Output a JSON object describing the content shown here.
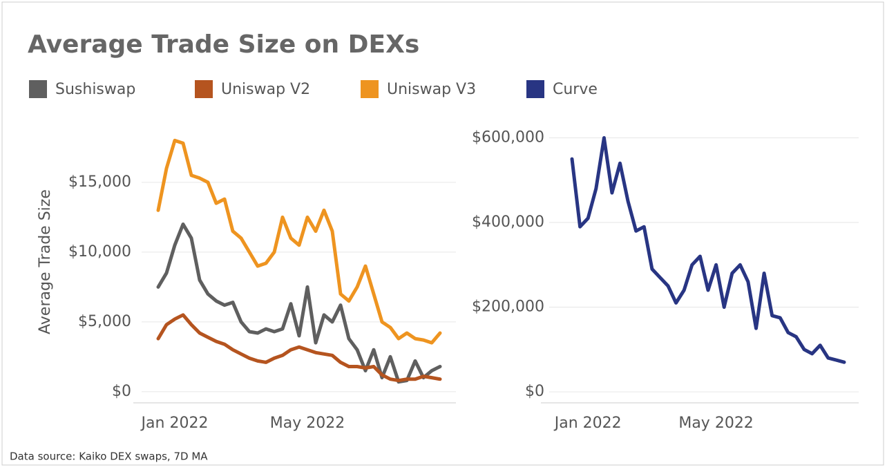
{
  "title": "Average Trade Size on DEXs",
  "source": "Data source: Kaiko DEX swaps, 7D MA",
  "chart_data": [
    {
      "type": "line",
      "ylabel": "Average Trade Size",
      "categories": [
        null,
        null,
        "Jan 2022",
        null,
        null,
        null,
        null,
        null,
        null,
        null,
        null,
        null,
        null,
        null,
        null,
        null,
        null,
        null,
        "May 2022",
        null,
        null,
        null,
        null,
        null,
        null,
        null,
        null,
        null,
        null,
        null,
        null,
        null,
        null,
        null,
        null
      ],
      "series": [
        {
          "name": "Sushiswap",
          "color": "#5f5f5f",
          "values": [
            7500,
            8500,
            10500,
            12000,
            11000,
            8000,
            7000,
            6500,
            6200,
            6400,
            5000,
            4300,
            4200,
            4500,
            4300,
            4500,
            6300,
            4000,
            7500,
            3500,
            5500,
            5000,
            6200,
            3800,
            3000,
            1500,
            3000,
            1000,
            2500,
            700,
            800,
            2200,
            1000,
            1500,
            1800
          ]
        },
        {
          "name": "Uniswap V2",
          "color": "#b5541f",
          "values": [
            3800,
            4800,
            5200,
            5500,
            4800,
            4200,
            3900,
            3600,
            3400,
            3000,
            2700,
            2400,
            2200,
            2100,
            2400,
            2600,
            3000,
            3200,
            3000,
            2800,
            2700,
            2600,
            2100,
            1800,
            1800,
            1700,
            1800,
            1200,
            900,
            800,
            900,
            900,
            1100,
            1000,
            900
          ]
        },
        {
          "name": "Uniswap V3",
          "color": "#ee9420",
          "values": [
            13000,
            16000,
            18000,
            17800,
            15500,
            15300,
            15000,
            13500,
            13800,
            11500,
            11000,
            10000,
            9000,
            9200,
            10000,
            12500,
            11000,
            10500,
            12500,
            11500,
            13000,
            11500,
            7000,
            6500,
            7500,
            9000,
            7000,
            5000,
            4600,
            3800,
            4200,
            3800,
            3700,
            3500,
            4200
          ]
        }
      ],
      "ylim": [
        -800,
        19400
      ],
      "yticks": [
        {
          "value": 0,
          "label": "$0"
        },
        {
          "value": 5000,
          "label": "$5,000"
        },
        {
          "value": 10000,
          "label": "$10,000"
        },
        {
          "value": 15000,
          "label": "$15,000"
        }
      ],
      "grid": true
    },
    {
      "type": "line",
      "categories": [
        null,
        null,
        "Jan 2022",
        null,
        null,
        null,
        null,
        null,
        null,
        null,
        null,
        null,
        null,
        null,
        null,
        null,
        null,
        null,
        "May 2022",
        null,
        null,
        null,
        null,
        null,
        null,
        null,
        null,
        null,
        null,
        null,
        null,
        null,
        null,
        null,
        null
      ],
      "series": [
        {
          "name": "Curve",
          "color": "#283583",
          "values": [
            550000,
            390000,
            410000,
            480000,
            600000,
            470000,
            540000,
            450000,
            380000,
            390000,
            290000,
            270000,
            250000,
            210000,
            240000,
            300000,
            320000,
            240000,
            300000,
            200000,
            280000,
            300000,
            260000,
            150000,
            280000,
            180000,
            175000,
            140000,
            130000,
            100000,
            90000,
            110000,
            80000,
            75000,
            70000
          ]
        }
      ],
      "ylim": [
        -26000,
        640000
      ],
      "yticks": [
        {
          "value": 0,
          "label": "$0"
        },
        {
          "value": 200000,
          "label": "$200,000"
        },
        {
          "value": 400000,
          "label": "$400,000"
        },
        {
          "value": 600000,
          "label": "$600,000"
        }
      ],
      "grid": true
    }
  ]
}
